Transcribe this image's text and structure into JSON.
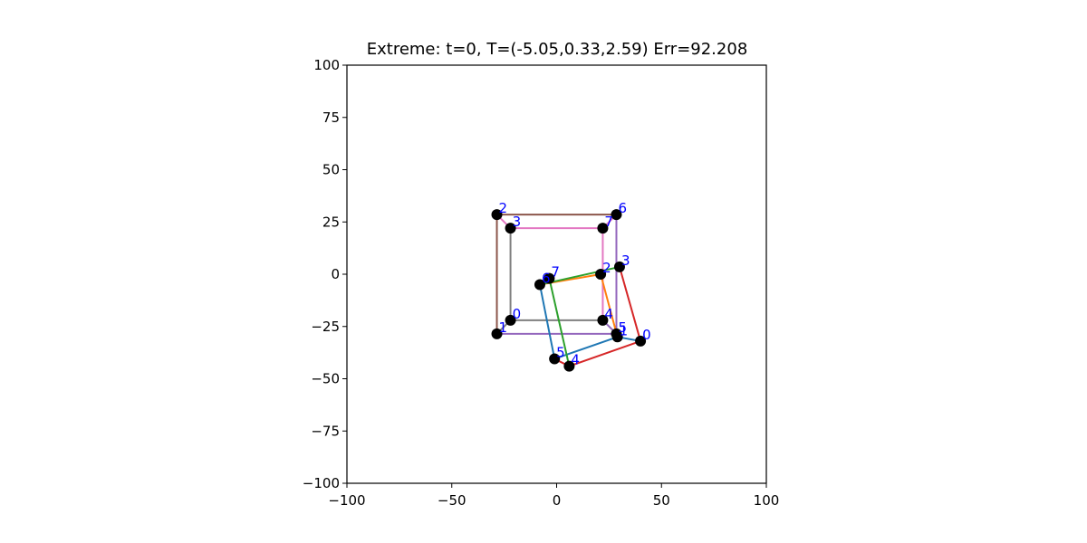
{
  "chart_data": {
    "type": "scatter",
    "title": "Extreme: t=0, T=(-5.05,0.33,2.59) Err=92.208",
    "xlabel": "",
    "ylabel": "",
    "xlim": [
      -100,
      100
    ],
    "ylim": [
      -100,
      100
    ],
    "xticks": [
      -100,
      -50,
      0,
      50,
      100
    ],
    "yticks": [
      -100,
      -75,
      -50,
      -25,
      0,
      25,
      50,
      75,
      100
    ],
    "xtick_labels": [
      "−100",
      "−50",
      "0",
      "50",
      "100"
    ],
    "ytick_labels": [
      "−100",
      "−75",
      "−50",
      "−25",
      "0",
      "25",
      "50",
      "75",
      "100"
    ],
    "grid": false,
    "label_color": "#0000ff",
    "marker_color": "#000000",
    "point_sets": [
      {
        "points": [
          {
            "label": "0",
            "x": -22,
            "y": -22
          },
          {
            "label": "1",
            "x": -28.5,
            "y": -28.5
          },
          {
            "label": "2",
            "x": -28.5,
            "y": 28.5
          },
          {
            "label": "3",
            "x": -22,
            "y": 22
          },
          {
            "label": "4",
            "x": 22,
            "y": -22
          },
          {
            "label": "5",
            "x": 28.5,
            "y": -28.5
          },
          {
            "label": "6",
            "x": 28.5,
            "y": 28.5
          },
          {
            "label": "7",
            "x": 22,
            "y": 22
          }
        ]
      },
      {
        "points": [
          {
            "label": "0",
            "x": 40,
            "y": -32
          },
          {
            "label": "1",
            "x": 29,
            "y": -30
          },
          {
            "label": "2",
            "x": 21,
            "y": 0
          },
          {
            "label": "3",
            "x": 30,
            "y": 3.5
          },
          {
            "label": "4",
            "x": 6,
            "y": -44
          },
          {
            "label": "5",
            "x": -1,
            "y": -40.5
          },
          {
            "label": "6",
            "x": -8,
            "y": -5
          },
          {
            "label": "7",
            "x": -3.5,
            "y": -2
          }
        ]
      }
    ],
    "edges": [
      {
        "set": 0,
        "from": 2,
        "to": 6,
        "color": "#8c564b"
      },
      {
        "set": 0,
        "from": 1,
        "to": 2,
        "color": "#8c564b"
      },
      {
        "set": 0,
        "from": 2,
        "to": 3,
        "color": "#e377c2"
      },
      {
        "set": 0,
        "from": 3,
        "to": 7,
        "color": "#e377c2"
      },
      {
        "set": 0,
        "from": 7,
        "to": 4,
        "color": "#e377c2"
      },
      {
        "set": 0,
        "from": 6,
        "to": 7,
        "color": "#e377c2"
      },
      {
        "set": 0,
        "from": 0,
        "to": 3,
        "color": "#7f7f7f"
      },
      {
        "set": 0,
        "from": 0,
        "to": 4,
        "color": "#7f7f7f"
      },
      {
        "set": 0,
        "from": 0,
        "to": 1,
        "color": "#7f7f7f"
      },
      {
        "set": 0,
        "from": 1,
        "to": 5,
        "color": "#9467bd"
      },
      {
        "set": 0,
        "from": 5,
        "to": 6,
        "color": "#9467bd"
      },
      {
        "set": 0,
        "from": 4,
        "to": 5,
        "color": "#9467bd"
      },
      {
        "set": 1,
        "from": 1,
        "to": 2,
        "color": "#ff7f0e"
      },
      {
        "set": 1,
        "from": 2,
        "to": 6,
        "color": "#ff7f0e"
      },
      {
        "set": 1,
        "from": 6,
        "to": 5,
        "color": "#1f77b4"
      },
      {
        "set": 1,
        "from": 5,
        "to": 1,
        "color": "#1f77b4"
      },
      {
        "set": 1,
        "from": 1,
        "to": 0,
        "color": "#1f77b4"
      },
      {
        "set": 1,
        "from": 6,
        "to": 3,
        "color": "#2ca02c"
      },
      {
        "set": 1,
        "from": 7,
        "to": 4,
        "color": "#2ca02c"
      },
      {
        "set": 1,
        "from": 3,
        "to": 0,
        "color": "#d62728"
      },
      {
        "set": 1,
        "from": 0,
        "to": 4,
        "color": "#d62728"
      },
      {
        "set": 1,
        "from": 4,
        "to": 5,
        "color": "#d62728"
      }
    ]
  }
}
